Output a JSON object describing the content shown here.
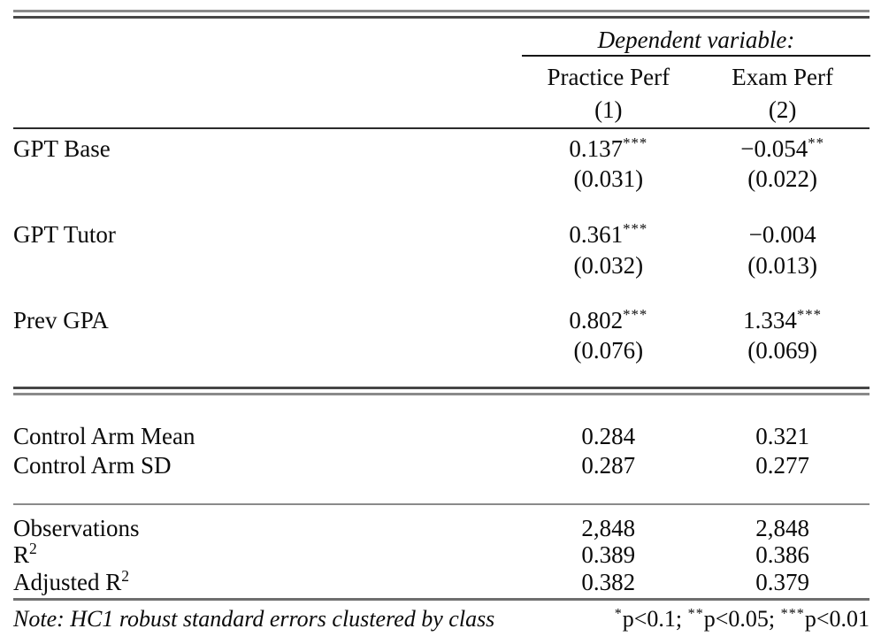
{
  "table": {
    "dep_var_label": "Dependent variable:",
    "columns": [
      {
        "name": "Practice Perf",
        "number": "(1)"
      },
      {
        "name": "Exam Perf",
        "number": "(2)"
      }
    ],
    "coef_rows": [
      {
        "label": "GPT Base",
        "cells": [
          {
            "est": "0.137",
            "stars": "***",
            "se": "(0.031)"
          },
          {
            "est": "−0.054",
            "stars": "**",
            "se": "(0.022)"
          }
        ]
      },
      {
        "label": "GPT Tutor",
        "cells": [
          {
            "est": "0.361",
            "stars": "***",
            "se": "(0.032)"
          },
          {
            "est": "−0.004",
            "stars": "",
            "se": "(0.013)"
          }
        ]
      },
      {
        "label": "Prev GPA",
        "cells": [
          {
            "est": "0.802",
            "stars": "***",
            "se": "(0.076)"
          },
          {
            "est": "1.334",
            "stars": "***",
            "se": "(0.069)"
          }
        ]
      }
    ],
    "summary_rows": [
      {
        "label": "Control Arm Mean",
        "values": [
          "0.284",
          "0.321"
        ]
      },
      {
        "label": "Control Arm SD",
        "values": [
          "0.287",
          "0.277"
        ]
      }
    ],
    "stats_rows": [
      {
        "label": "Observations",
        "label_sup": "",
        "values": [
          "2,848",
          "2,848"
        ]
      },
      {
        "label": "R",
        "label_sup": "2",
        "values": [
          "0.389",
          "0.386"
        ]
      },
      {
        "label": "Adjusted R",
        "label_sup": "2",
        "values": [
          "0.382",
          "0.379"
        ]
      }
    ],
    "footer": {
      "note": "Note: HC1 robust standard errors clustered by class",
      "legend": [
        {
          "stars": "*",
          "text": "p<0.1; "
        },
        {
          "stars": "**",
          "text": "p<0.05; "
        },
        {
          "stars": "***",
          "text": "p<0.01"
        }
      ]
    }
  }
}
